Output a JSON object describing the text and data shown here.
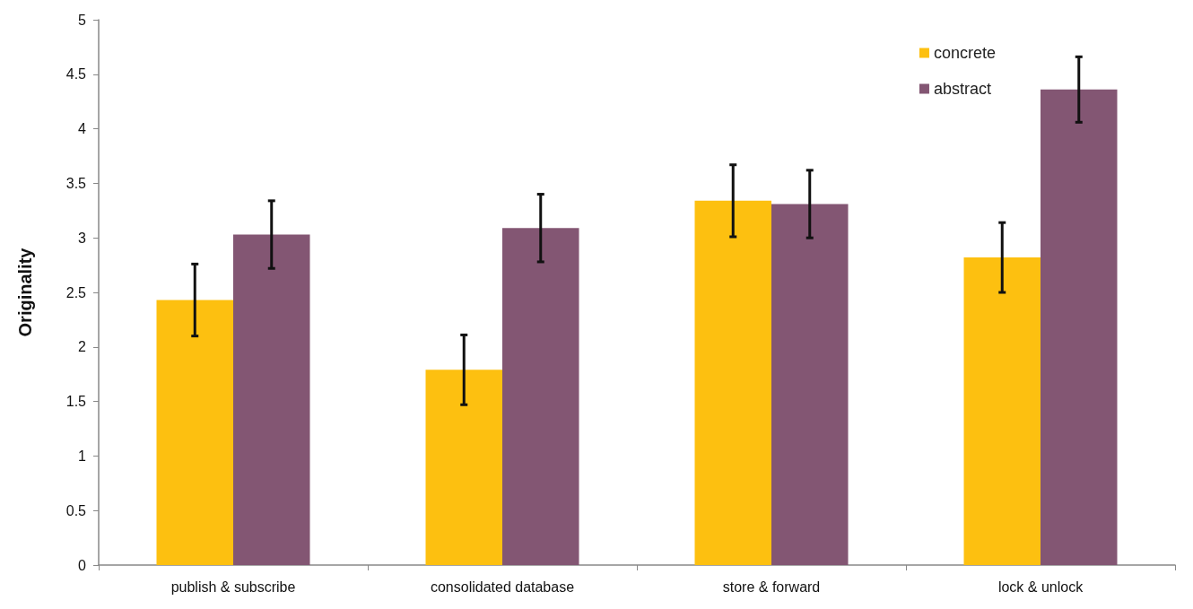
{
  "chart_data": {
    "type": "bar",
    "ylabel": "Originality",
    "categories": [
      "publish & subscribe",
      "consolidated database",
      "store & forward",
      "lock & unlock"
    ],
    "series": [
      {
        "name": "concrete",
        "color": "#fdc010",
        "values": [
          2.43,
          1.79,
          3.34,
          2.82
        ],
        "errors": [
          0.33,
          0.32,
          0.33,
          0.32
        ]
      },
      {
        "name": "abstract",
        "color": "#835673",
        "values": [
          3.03,
          3.09,
          3.31,
          4.36
        ],
        "errors": [
          0.31,
          0.31,
          0.31,
          0.3
        ]
      }
    ],
    "ylim": [
      0,
      5
    ],
    "yticks": [
      0,
      0.5,
      1,
      1.5,
      2,
      2.5,
      3,
      3.5,
      4,
      4.5,
      5
    ],
    "grid": false,
    "legend": "top right"
  }
}
